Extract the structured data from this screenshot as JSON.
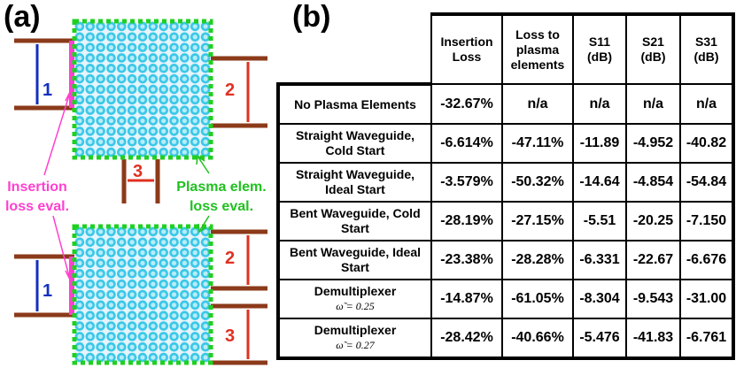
{
  "panels": {
    "a": "(a)",
    "b": "(b)"
  },
  "diagram": {
    "top_ports": [
      "1",
      "2",
      "3"
    ],
    "bottom_ports": [
      "1",
      "2",
      "3"
    ],
    "insertion_annotation": [
      "Insertion",
      "loss eval."
    ],
    "plasma_annotation": [
      "Plasma elem.",
      "loss eval."
    ]
  },
  "table": {
    "header": [
      "Insertion Loss",
      "Loss to plasma elements",
      "S11 (dB)",
      "S21 (dB)",
      "S31 (dB)"
    ],
    "rows": [
      {
        "label": "No Plasma Elements",
        "values": [
          "-32.67%",
          "n/a",
          "n/a",
          "n/a",
          "n/a"
        ]
      },
      {
        "label": "Straight Waveguide, Cold Start",
        "values": [
          "-6.614%",
          "-47.11%",
          "-11.89",
          "-4.952",
          "-40.82"
        ]
      },
      {
        "label": "Straight Waveguide, Ideal Start",
        "values": [
          "-3.579%",
          "-50.32%",
          "-14.64",
          "-4.854",
          "-54.84"
        ]
      },
      {
        "label": "Bent Waveguide, Cold Start",
        "values": [
          "-28.19%",
          "-27.15%",
          "-5.51",
          "-20.25",
          "-7.150"
        ]
      },
      {
        "label": "Bent Waveguide, Ideal Start",
        "values": [
          "-23.38%",
          "-28.28%",
          "-6.331",
          "-22.67",
          "-6.676"
        ]
      },
      {
        "label": "Demultiplexer",
        "sublabel": "ω̃ = 0.25",
        "values": [
          "-14.87%",
          "-61.05%",
          "-8.304",
          "-9.543",
          "-31.00"
        ]
      },
      {
        "label": "Demultiplexer",
        "sublabel": "ω̃ = 0.27",
        "values": [
          "-28.42%",
          "-40.66%",
          "-5.476",
          "-41.83",
          "-6.761"
        ]
      }
    ]
  }
}
